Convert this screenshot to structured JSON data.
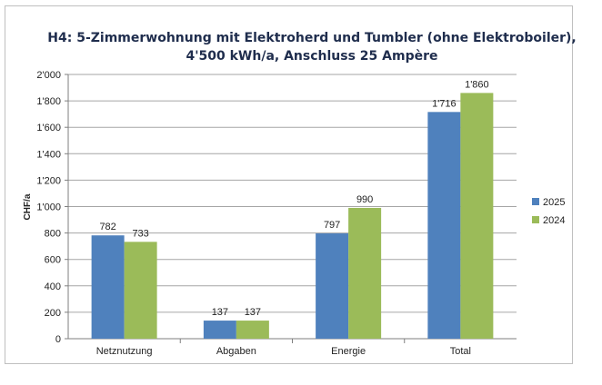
{
  "chart_data": {
    "type": "bar",
    "title_line1": "H4: 5-Zimmerwohnung mit Elektroherd und Tumbler (ohne Elektroboiler),",
    "title_line2": "4'500 kWh/a, Anschluss 25 Ampère",
    "ylabel": "CHF/a",
    "xlabel": "",
    "categories": [
      "Netznutzung",
      "Abgaben",
      "Energie",
      "Total"
    ],
    "series": [
      {
        "name": "2025",
        "values": [
          782,
          137,
          797,
          1716
        ],
        "labels": [
          "782",
          "137",
          "797",
          "1'716"
        ],
        "color": "#4f81bd"
      },
      {
        "name": "2024",
        "values": [
          733,
          137,
          990,
          1860
        ],
        "labels": [
          "733",
          "137",
          "990",
          "1'860"
        ],
        "color": "#9bbb59"
      }
    ],
    "ylim": [
      0,
      2000
    ],
    "yticks": [
      0,
      200,
      400,
      600,
      800,
      1000,
      1200,
      1400,
      1600,
      1800,
      2000
    ],
    "ytick_labels": [
      "0",
      "200",
      "400",
      "600",
      "800",
      "1'000",
      "1'200",
      "1'400",
      "1'600",
      "1'800",
      "2'000"
    ],
    "grid": true,
    "legend_position": "right"
  }
}
